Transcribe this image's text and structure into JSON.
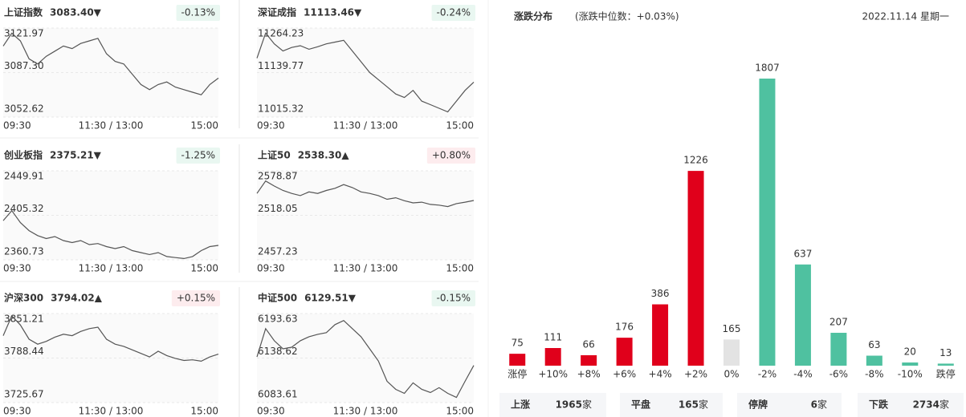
{
  "chart_data": [
    {
      "type": "line",
      "title": "上证指数",
      "price": "3083.40▼",
      "change": "-0.13%",
      "color": "#3cb98a",
      "values": [
        3108,
        3118,
        3112,
        3098,
        3094,
        3100,
        3104,
        3108,
        3106,
        3110,
        3112,
        3114,
        3102,
        3096,
        3094,
        3086,
        3078,
        3074,
        3078,
        3080,
        3076,
        3074,
        3072,
        3070,
        3078,
        3083
      ],
      "ylim": [
        3052.62,
        3121.97
      ],
      "yticks": [
        3121.97,
        {
          "value": 3087.3,
          "label": "3087.30"
        },
        3052.62
      ],
      "xlabels": [
        "09:30",
        "11:30 / 13:00",
        "15:00"
      ]
    },
    {
      "type": "line",
      "title": "深证成指",
      "price": "11113.46▼",
      "change": "-0.24%",
      "color": "#3cb98a",
      "values": [
        11180,
        11250,
        11220,
        11200,
        11210,
        11215,
        11205,
        11212,
        11220,
        11225,
        11230,
        11200,
        11170,
        11140,
        11120,
        11100,
        11080,
        11070,
        11090,
        11060,
        11050,
        11040,
        11030,
        11060,
        11090,
        11113
      ],
      "ylim": [
        11015.32,
        11264.23
      ],
      "yticks": [
        11264.23,
        11139.77,
        11015.32
      ],
      "xlabels": [
        "09:30",
        "11:30 / 13:00",
        "15:00"
      ]
    },
    {
      "type": "line",
      "title": "创业板指",
      "price": "2375.21▼",
      "change": "-1.25%",
      "color": "#3cb98a",
      "values": [
        2400,
        2410,
        2398,
        2390,
        2385,
        2382,
        2384,
        2380,
        2378,
        2380,
        2376,
        2377,
        2374,
        2372,
        2374,
        2370,
        2368,
        2366,
        2368,
        2364,
        2363,
        2362,
        2364,
        2370,
        2374,
        2375.21
      ],
      "ylim": [
        2360.73,
        2449.91
      ],
      "yticks": [
        2449.91,
        2405.32,
        2360.73
      ],
      "xlabels": [
        "09:30",
        "11:30 / 13:00",
        "15:00"
      ]
    },
    {
      "type": "line",
      "title": "上证50",
      "price": "2538.30▲",
      "change": "+0.80%",
      "color": "#e0001b",
      "values": [
        2548,
        2565,
        2558,
        2552,
        2548,
        2545,
        2550,
        2548,
        2552,
        2555,
        2560,
        2556,
        2550,
        2548,
        2545,
        2540,
        2542,
        2538,
        2535,
        2536,
        2533,
        2532,
        2530,
        2534,
        2536,
        2538.3
      ],
      "ylim": [
        2457.23,
        2578.87
      ],
      "yticks": [
        2578.87,
        2518.05,
        2457.23
      ],
      "xlabels": [
        "09:30",
        "11:30 / 13:00",
        "15:00"
      ]
    },
    {
      "type": "line",
      "title": "沪深300",
      "price": "3794.02▲",
      "change": "+0.15%",
      "color": "#e0001b",
      "values": [
        3820,
        3848,
        3835,
        3815,
        3808,
        3812,
        3818,
        3822,
        3820,
        3826,
        3830,
        3832,
        3815,
        3808,
        3805,
        3800,
        3795,
        3790,
        3798,
        3792,
        3788,
        3785,
        3786,
        3784,
        3790,
        3794
      ],
      "ylim": [
        3725.67,
        3851.21
      ],
      "yticks": [
        3851.21,
        3788.44,
        3725.67
      ],
      "xlabels": [
        "09:30",
        "11:30 / 13:00",
        "15:00"
      ]
    },
    {
      "type": "line",
      "title": "中证500",
      "price": "6129.51▼",
      "change": "-0.15%",
      "color": "#3cb98a",
      "values": [
        6140,
        6175,
        6160,
        6150,
        6152,
        6160,
        6165,
        6168,
        6170,
        6180,
        6185,
        6175,
        6165,
        6150,
        6135,
        6110,
        6100,
        6095,
        6108,
        6100,
        6096,
        6102,
        6095,
        6090,
        6110,
        6129.5
      ],
      "ylim": [
        6083.61,
        6193.63
      ],
      "yticks": [
        6193.63,
        6138.62,
        6083.61
      ],
      "xlabels": [
        "09:30",
        "11:30 / 13:00",
        "15:00"
      ]
    },
    {
      "type": "bar",
      "title": "涨跌分布",
      "subtitle": "(涨跌中位数：+0.03%)",
      "date": "2022.11.14 星期一",
      "categories": [
        "涨停",
        "+10%",
        "+8%",
        "+6%",
        "+4%",
        "+2%",
        "0%",
        "-2%",
        "-4%",
        "-6%",
        "-8%",
        "-10%",
        "跌停"
      ],
      "values": [
        75,
        111,
        66,
        176,
        386,
        1226,
        165,
        1807,
        637,
        207,
        63,
        20,
        13
      ],
      "colors": [
        "#e0001b",
        "#e0001b",
        "#e0001b",
        "#e0001b",
        "#e0001b",
        "#e0001b",
        "#e3e3e3",
        "#4fc1a0",
        "#4fc1a0",
        "#4fc1a0",
        "#4fc1a0",
        "#4fc1a0",
        "#4fc1a0"
      ],
      "summary": [
        {
          "label": "上涨",
          "count": 1965,
          "unit": "家",
          "color": "#e0001b"
        },
        {
          "label": "平盘",
          "count": 165,
          "unit": "家",
          "color": "#333333"
        },
        {
          "label": "停牌",
          "count": 6,
          "unit": "家",
          "color": "#333333"
        },
        {
          "label": "下跌",
          "count": 2734,
          "unit": "家",
          "color": "#3cb98a"
        }
      ]
    }
  ]
}
